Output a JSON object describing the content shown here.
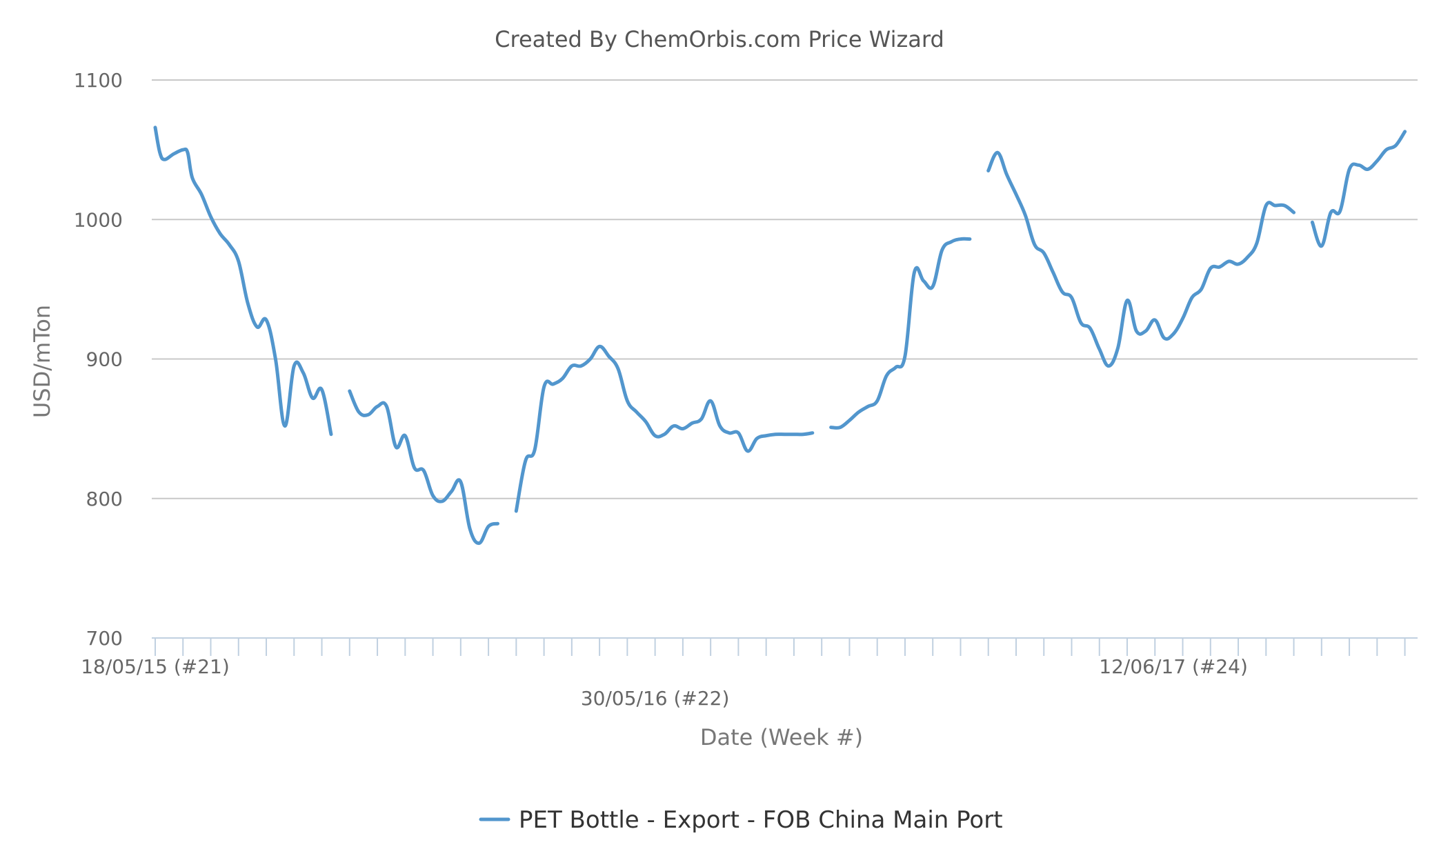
{
  "chart_data": {
    "type": "line",
    "title": "Created By ChemOrbis.com Price Wizard",
    "xlabel": "Date (Week #)",
    "ylabel": "USD/mTon",
    "ylim": [
      700,
      1100
    ],
    "yticks": [
      700,
      800,
      900,
      1000,
      1100
    ],
    "grid": true,
    "legend_position": "bottom",
    "x_tick_labels": [
      {
        "label": "18/05/15 (#21)",
        "week_index": 0
      },
      {
        "label": "30/05/16 (#22)",
        "week_index": 54
      },
      {
        "label": "12/06/17 (#24)",
        "week_index": 110
      }
    ],
    "x_range_weeks": [
      0,
      136
    ],
    "series": [
      {
        "name": "PET Bottle - Export - FOB China Main Port",
        "color": "#5296cd",
        "segments": [
          [
            [
              0,
              1066
            ],
            [
              0.5,
              1048
            ],
            [
              1,
              1043
            ],
            [
              2,
              1047
            ],
            [
              3,
              1050
            ],
            [
              3.5,
              1048
            ],
            [
              4,
              1030
            ],
            [
              5,
              1018
            ],
            [
              6,
              1002
            ],
            [
              7,
              990
            ],
            [
              8,
              982
            ],
            [
              9,
              970
            ],
            [
              10,
              940
            ],
            [
              11,
              923
            ],
            [
              12,
              928
            ],
            [
              13,
              900
            ],
            [
              14,
              852
            ],
            [
              15,
              895
            ],
            [
              16,
              890
            ],
            [
              17,
              872
            ],
            [
              18,
              878
            ],
            [
              19,
              846
            ]
          ],
          [
            [
              21,
              877
            ],
            [
              22,
              862
            ],
            [
              23,
              860
            ],
            [
              24,
              866
            ],
            [
              25,
              866
            ],
            [
              26,
              837
            ],
            [
              27,
              845
            ],
            [
              28,
              822
            ],
            [
              29,
              820
            ],
            [
              30,
              802
            ],
            [
              31,
              798
            ],
            [
              32,
              805
            ],
            [
              33,
              812
            ],
            [
              34,
              778
            ],
            [
              35,
              768
            ],
            [
              36,
              780
            ],
            [
              37,
              782
            ]
          ],
          [
            [
              39,
              791
            ],
            [
              40,
              827
            ],
            [
              41,
              835
            ],
            [
              42,
              880
            ],
            [
              43,
              882
            ],
            [
              44,
              886
            ],
            [
              45,
              895
            ],
            [
              46,
              895
            ],
            [
              47,
              900
            ],
            [
              48,
              909
            ],
            [
              49,
              902
            ],
            [
              50,
              893
            ],
            [
              51,
              870
            ],
            [
              52,
              862
            ],
            [
              53,
              855
            ],
            [
              54,
              845
            ],
            [
              55,
              846
            ],
            [
              56,
              852
            ],
            [
              57,
              850
            ],
            [
              58,
              854
            ],
            [
              59,
              857
            ],
            [
              60,
              870
            ],
            [
              61,
              852
            ],
            [
              62,
              847
            ],
            [
              63,
              847
            ],
            [
              64,
              834
            ],
            [
              65,
              843
            ],
            [
              66,
              845
            ],
            [
              67,
              846
            ],
            [
              68,
              846
            ],
            [
              69,
              846
            ],
            [
              70,
              846
            ],
            [
              71,
              847
            ]
          ],
          [
            [
              73,
              851
            ],
            [
              74,
              851
            ],
            [
              75,
              856
            ],
            [
              76,
              862
            ],
            [
              77,
              866
            ],
            [
              78,
              870
            ],
            [
              79,
              888
            ],
            [
              80,
              894
            ],
            [
              81,
              902
            ],
            [
              82,
              962
            ],
            [
              83,
              956
            ],
            [
              84,
              952
            ],
            [
              85,
              978
            ],
            [
              86,
              984
            ],
            [
              87,
              986
            ],
            [
              88,
              986
            ]
          ],
          [
            [
              90,
              1035
            ],
            [
              91,
              1048
            ],
            [
              92,
              1032
            ],
            [
              93,
              1018
            ],
            [
              94,
              1003
            ],
            [
              95,
              982
            ],
            [
              96,
              976
            ],
            [
              97,
              962
            ],
            [
              98,
              948
            ],
            [
              99,
              944
            ],
            [
              100,
              926
            ],
            [
              101,
              922
            ],
            [
              102,
              907
            ],
            [
              103,
              895
            ],
            [
              104,
              908
            ],
            [
              105,
              942
            ],
            [
              106,
              920
            ],
            [
              107,
              920
            ],
            [
              108,
              928
            ],
            [
              109,
              915
            ],
            [
              110,
              918
            ],
            [
              111,
              929
            ],
            [
              112,
              944
            ],
            [
              113,
              950
            ],
            [
              114,
              965
            ],
            [
              115,
              966
            ],
            [
              116,
              970
            ],
            [
              117,
              968
            ],
            [
              118,
              973
            ],
            [
              119,
              983
            ],
            [
              120,
              1010
            ],
            [
              121,
              1010
            ],
            [
              122,
              1010
            ],
            [
              123,
              1005
            ]
          ],
          [
            [
              125,
              998
            ],
            [
              126,
              981
            ],
            [
              127,
              1005
            ],
            [
              128,
              1006
            ],
            [
              129,
              1036
            ],
            [
              130,
              1039
            ],
            [
              131,
              1036
            ],
            [
              132,
              1042
            ],
            [
              133,
              1050
            ],
            [
              134,
              1053
            ],
            [
              135,
              1063
            ]
          ]
        ]
      }
    ]
  }
}
